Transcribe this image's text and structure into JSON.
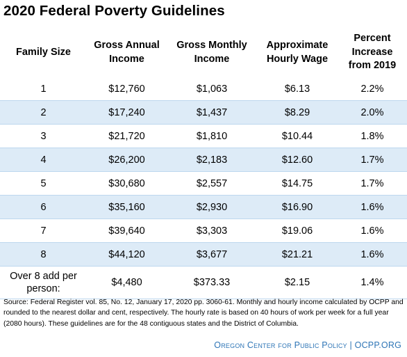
{
  "title": "2020 Federal Poverty Guidelines",
  "table": {
    "headers": [
      "Family Size",
      "Gross Annual Income",
      "Gross Monthly Income",
      "Approximate Hourly Wage",
      "Percent Increase from 2019"
    ],
    "rows": [
      [
        "1",
        "$12,760",
        "$1,063",
        "$6.13",
        "2.2%"
      ],
      [
        "2",
        "$17,240",
        "$1,437",
        "$8.29",
        "2.0%"
      ],
      [
        "3",
        "$21,720",
        "$1,810",
        "$10.44",
        "1.8%"
      ],
      [
        "4",
        "$26,200",
        "$2,183",
        "$12.60",
        "1.7%"
      ],
      [
        "5",
        "$30,680",
        "$2,557",
        "$14.75",
        "1.7%"
      ],
      [
        "6",
        "$35,160",
        "$2,930",
        "$16.90",
        "1.6%"
      ],
      [
        "7",
        "$39,640",
        "$3,303",
        "$19.06",
        "1.6%"
      ],
      [
        "8",
        "$44,120",
        "$3,677",
        "$21.21",
        "1.6%"
      ],
      [
        "Over 8 add per person:",
        "$4,480",
        "$373.33",
        "$2.15",
        "1.4%"
      ]
    ]
  },
  "source": "Source: Federal Register vol. 85, No. 12, January 17, 2020 pp. 3060-61. Monthly and hourly income calculated by OCPP and rounded to the nearest dollar and cent, respectively. The hourly rate is based on 40 hours of work per week for a full year (2080 hours). These guidelines are for the 48 contiguous states and the District of Columbia.",
  "footer": {
    "org": "Oregon Center for Public Policy",
    "separator": " | ",
    "site": "OCPP.ORG"
  },
  "colors": {
    "row_shade": "#ddebf7",
    "row_rule": "#bdd7ee",
    "footer_text": "#2e75b6"
  }
}
